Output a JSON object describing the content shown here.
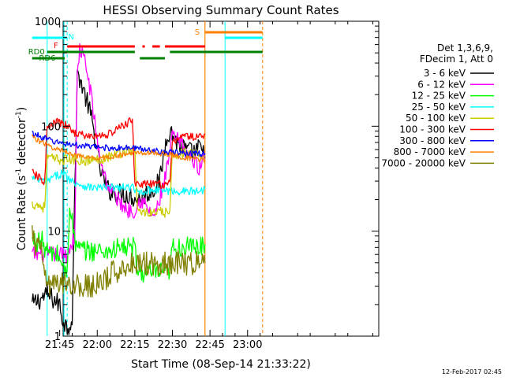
{
  "chart_data": {
    "type": "line",
    "title": "HESSI Observing Summary Count Rates",
    "xlabel": "Start Time (08-Sep-14 21:33:22)",
    "ylabel_main": "Count Rate (s",
    "ylabel_sup1": "-1",
    "ylabel_mid": " detector",
    "ylabel_sup2": "-1",
    "ylabel_end": ")",
    "yscale": "log",
    "ylim": [
      1,
      1000
    ],
    "xlim_minutes": [
      -13.63,
      112.37
    ],
    "x_tick_labels": [
      {
        "label": "21:45",
        "minute": -15
      },
      {
        "label": "22:00",
        "minute": 0
      },
      {
        "label": "22:15",
        "minute": 15
      },
      {
        "label": "22:30",
        "minute": 30
      },
      {
        "label": "22:45",
        "minute": 45
      },
      {
        "label": "23:00",
        "minute": 60
      }
    ],
    "y_tick_labels": [
      {
        "label": "1",
        "value": 1
      },
      {
        "label": "10",
        "value": 10
      },
      {
        "label": "100",
        "value": 100
      },
      {
        "label": "1000",
        "value": 1000
      }
    ],
    "legend_header": [
      "Det 1,3,6,9,",
      "FDecim 1, Att 0"
    ],
    "legend_position": "right",
    "timestamp": "12-Feb-2017 02:45",
    "flag_labels": {
      "rd0": "RD0",
      "rd6": "RD6",
      "flare": "F",
      "night": "N",
      "saa": "S"
    },
    "series": [
      {
        "name": "3 - 6 keV",
        "color": "#000000",
        "x": [
          "21:34",
          "21:40",
          "21:45",
          "21:46",
          "21:48",
          "21:50",
          "21:52",
          "21:53",
          "21:55",
          "21:57",
          "21:59",
          "22:01",
          "22:04",
          "22:08",
          "22:13",
          "22:16",
          "22:19",
          "22:22",
          "22:25",
          "22:28",
          "22:30",
          "22:32",
          "22:35",
          "22:38",
          "22:41",
          "22:43"
        ],
        "y": [
          2,
          2.5,
          2,
          1.5,
          1.2,
          1.5,
          300,
          290,
          200,
          140,
          80,
          40,
          25,
          23,
          22,
          20,
          22,
          25,
          30,
          90,
          85,
          70,
          60,
          55,
          62,
          50
        ]
      },
      {
        "name": "6 - 12 keV",
        "color": "#ff00ff",
        "x": [
          "21:34",
          "21:44",
          "21:45",
          "21:48",
          "21:51",
          "21:52",
          "21:53",
          "21:55",
          "21:57",
          "21:59",
          "22:01",
          "22:04",
          "22:08",
          "22:12",
          "22:15",
          "22:17",
          "22:19",
          "22:21",
          "22:23",
          "22:25",
          "22:28",
          "22:30",
          "22:33",
          "22:36",
          "22:39",
          "22:41",
          "22:43"
        ],
        "y": [
          6,
          6,
          6,
          6,
          9,
          300,
          550,
          420,
          240,
          110,
          50,
          28,
          20,
          16,
          16,
          20,
          18,
          15,
          14,
          20,
          40,
          80,
          70,
          55,
          45,
          40,
          55
        ]
      },
      {
        "name": "12 - 25 keV",
        "color": "#00ff00",
        "x": [
          "21:34",
          "21:38",
          "21:39",
          "21:41",
          "21:44",
          "21:46",
          "21:47",
          "21:48",
          "21:49",
          "21:50",
          "21:51",
          "21:52",
          "21:54",
          "21:57",
          "22:00",
          "22:05",
          "22:10",
          "22:13",
          "22:15",
          "22:16",
          "22:18",
          "22:22",
          "22:26",
          "22:29",
          "22:30",
          "22:33",
          "22:36",
          "22:40",
          "22:43"
        ],
        "y": [
          8,
          8,
          7,
          6,
          6,
          5,
          4,
          4,
          20,
          12,
          8,
          7,
          6.5,
          6.5,
          6.5,
          6.5,
          7,
          7,
          7,
          4,
          4,
          4,
          4,
          4,
          7,
          7,
          7,
          7,
          7.5
        ]
      },
      {
        "name": "25 - 50 keV",
        "color": "#00ffff",
        "x": [
          "21:34",
          "21:38",
          "21:40",
          "21:44",
          "21:46",
          "21:50",
          "21:53",
          "21:55",
          "21:58",
          "22:01",
          "22:04",
          "22:08",
          "22:12",
          "22:14",
          "22:15",
          "22:19",
          "22:22",
          "22:25",
          "22:29",
          "22:30",
          "22:33",
          "22:36",
          "22:40",
          "22:43"
        ],
        "y": [
          32,
          30,
          30,
          34,
          36,
          30,
          28,
          27,
          26,
          26,
          26,
          26,
          26,
          26,
          24,
          24,
          25,
          25,
          24,
          24,
          24,
          24,
          24,
          25
        ]
      },
      {
        "name": "50 - 100 keV",
        "color": "#cccc00",
        "x": [
          "21:34",
          "21:36",
          "21:38",
          "21:39",
          "21:40",
          "21:44",
          "21:48",
          "21:51",
          "21:52",
          "21:56",
          "22:00",
          "22:05",
          "22:10",
          "22:13",
          "22:15",
          "22:16",
          "22:19",
          "22:23",
          "22:26",
          "22:29",
          "22:30",
          "22:35",
          "22:40",
          "22:43"
        ],
        "y": [
          18,
          18,
          17,
          17,
          50,
          48,
          48,
          48,
          48,
          47,
          48,
          52,
          56,
          60,
          58,
          16,
          15,
          15,
          15,
          15,
          55,
          55,
          53,
          52
        ]
      },
      {
        "name": "100 - 300 keV",
        "color": "#ff0000",
        "x": [
          "21:34",
          "21:37",
          "21:38",
          "21:39",
          "21:40",
          "21:44",
          "21:48",
          "21:50",
          "21:52",
          "21:56",
          "22:00",
          "22:05",
          "22:10",
          "22:14",
          "22:15",
          "22:18",
          "22:22",
          "22:26",
          "22:29",
          "22:30",
          "22:33",
          "22:36",
          "22:40",
          "22:43"
        ],
        "y": [
          36,
          32,
          30,
          30,
          95,
          110,
          100,
          90,
          85,
          80,
          80,
          85,
          100,
          115,
          29,
          28,
          28,
          28,
          28,
          70,
          80,
          80,
          78,
          85
        ]
      },
      {
        "name": "300 - 800 keV",
        "color": "#0000ff",
        "x": [
          "21:34",
          "21:37",
          "21:40",
          "21:44",
          "21:48",
          "21:52",
          "21:56",
          "22:00",
          "22:05",
          "22:10",
          "22:15",
          "22:20",
          "22:25",
          "22:30",
          "22:35",
          "22:40",
          "22:43"
        ],
        "y": [
          86,
          80,
          75,
          70,
          68,
          66,
          64,
          63,
          62,
          62,
          62,
          60,
          58,
          56,
          55,
          55,
          55
        ]
      },
      {
        "name": "800 - 7000 keV",
        "color": "#ff8000",
        "x": [
          "21:34",
          "21:37",
          "21:40",
          "21:44",
          "21:48",
          "21:52",
          "21:56",
          "22:00",
          "22:05",
          "22:10",
          "22:15",
          "22:20",
          "22:25",
          "22:30",
          "22:35",
          "22:40",
          "22:43"
        ],
        "y": [
          80,
          72,
          66,
          60,
          57,
          52,
          50,
          50,
          51,
          53,
          56,
          56,
          55,
          53,
          50,
          48,
          48
        ]
      },
      {
        "name": "7000 - 20000 keV",
        "color": "#808000",
        "x": [
          "21:34",
          "21:36",
          "21:38",
          "21:40",
          "21:44",
          "21:48",
          "21:50",
          "21:54",
          "21:58",
          "22:02",
          "22:06",
          "22:10",
          "22:14",
          "22:17",
          "22:20",
          "22:24",
          "22:28",
          "22:32",
          "22:36",
          "22:40",
          "22:43"
        ],
        "y": [
          9,
          7,
          6,
          3,
          3,
          3.5,
          3,
          3,
          3,
          3.2,
          4,
          4.5,
          5,
          5,
          5,
          5,
          5,
          5,
          5,
          5,
          5
        ]
      }
    ]
  }
}
